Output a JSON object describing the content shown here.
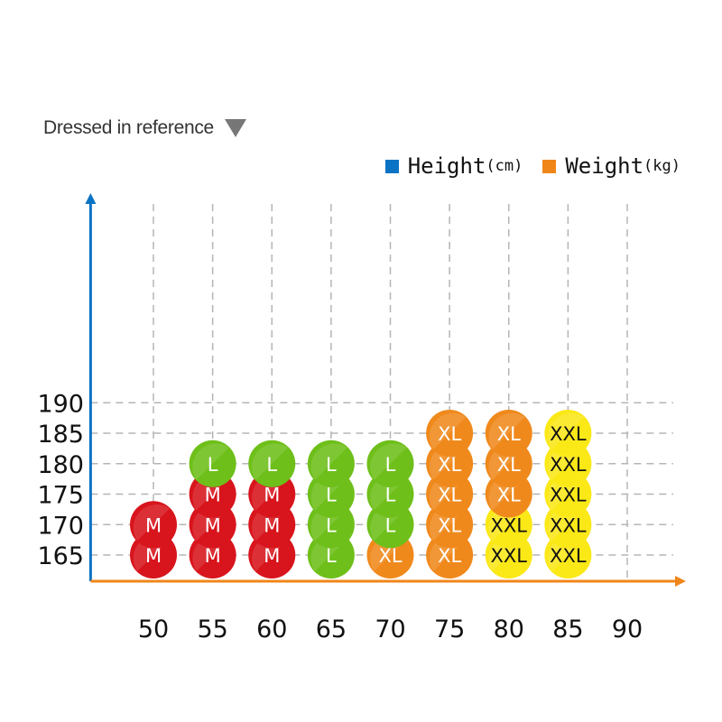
{
  "chart_data": {
    "type": "scatter",
    "title": "Dressed in reference",
    "legend": [
      {
        "name": "Height",
        "unit": "(cm)",
        "color": "#0b73c4"
      },
      {
        "name": "Weight",
        "unit": "(kg)",
        "color": "#f0861a"
      }
    ],
    "x_ticks": [
      50,
      55,
      60,
      65,
      70,
      75,
      80,
      85,
      90
    ],
    "y_ticks": [
      165,
      170,
      175,
      180,
      185,
      190
    ],
    "xlim": [
      45,
      91
    ],
    "ylim": [
      161,
      193
    ],
    "grid": true,
    "axis_colors": {
      "x": "#f0861a",
      "y": "#0b73c4"
    },
    "size_colors": {
      "M": "#d8141c",
      "L": "#6ebf1a",
      "XL": "#f0891c",
      "XXL": "#fbe817"
    },
    "size_text_colors": {
      "M": "#ffffff",
      "L": "#ffffff",
      "XL": "#ffffff",
      "XXL": "#111111"
    },
    "points": [
      {
        "x": 50,
        "y": 165,
        "size": "M"
      },
      {
        "x": 55,
        "y": 165,
        "size": "M"
      },
      {
        "x": 60,
        "y": 165,
        "size": "M"
      },
      {
        "x": 65,
        "y": 165,
        "size": "L"
      },
      {
        "x": 70,
        "y": 165,
        "size": "XL"
      },
      {
        "x": 75,
        "y": 165,
        "size": "XL"
      },
      {
        "x": 80,
        "y": 165,
        "size": "XXL"
      },
      {
        "x": 85,
        "y": 165,
        "size": "XXL"
      },
      {
        "x": 50,
        "y": 170,
        "size": "M"
      },
      {
        "x": 55,
        "y": 170,
        "size": "M"
      },
      {
        "x": 60,
        "y": 170,
        "size": "M"
      },
      {
        "x": 65,
        "y": 170,
        "size": "L"
      },
      {
        "x": 70,
        "y": 170,
        "size": "L"
      },
      {
        "x": 75,
        "y": 170,
        "size": "XL"
      },
      {
        "x": 80,
        "y": 170,
        "size": "XXL"
      },
      {
        "x": 85,
        "y": 170,
        "size": "XXL"
      },
      {
        "x": 55,
        "y": 175,
        "size": "M"
      },
      {
        "x": 60,
        "y": 175,
        "size": "M"
      },
      {
        "x": 65,
        "y": 175,
        "size": "L"
      },
      {
        "x": 70,
        "y": 175,
        "size": "L"
      },
      {
        "x": 75,
        "y": 175,
        "size": "XL"
      },
      {
        "x": 80,
        "y": 175,
        "size": "XL"
      },
      {
        "x": 85,
        "y": 175,
        "size": "XXL"
      },
      {
        "x": 55,
        "y": 180,
        "size": "L"
      },
      {
        "x": 60,
        "y": 180,
        "size": "L"
      },
      {
        "x": 65,
        "y": 180,
        "size": "L"
      },
      {
        "x": 70,
        "y": 180,
        "size": "L"
      },
      {
        "x": 75,
        "y": 180,
        "size": "XL"
      },
      {
        "x": 80,
        "y": 180,
        "size": "XL"
      },
      {
        "x": 85,
        "y": 180,
        "size": "XXL"
      },
      {
        "x": 75,
        "y": 185,
        "size": "XL"
      },
      {
        "x": 80,
        "y": 185,
        "size": "XL"
      },
      {
        "x": 85,
        "y": 185,
        "size": "XXL"
      }
    ]
  }
}
